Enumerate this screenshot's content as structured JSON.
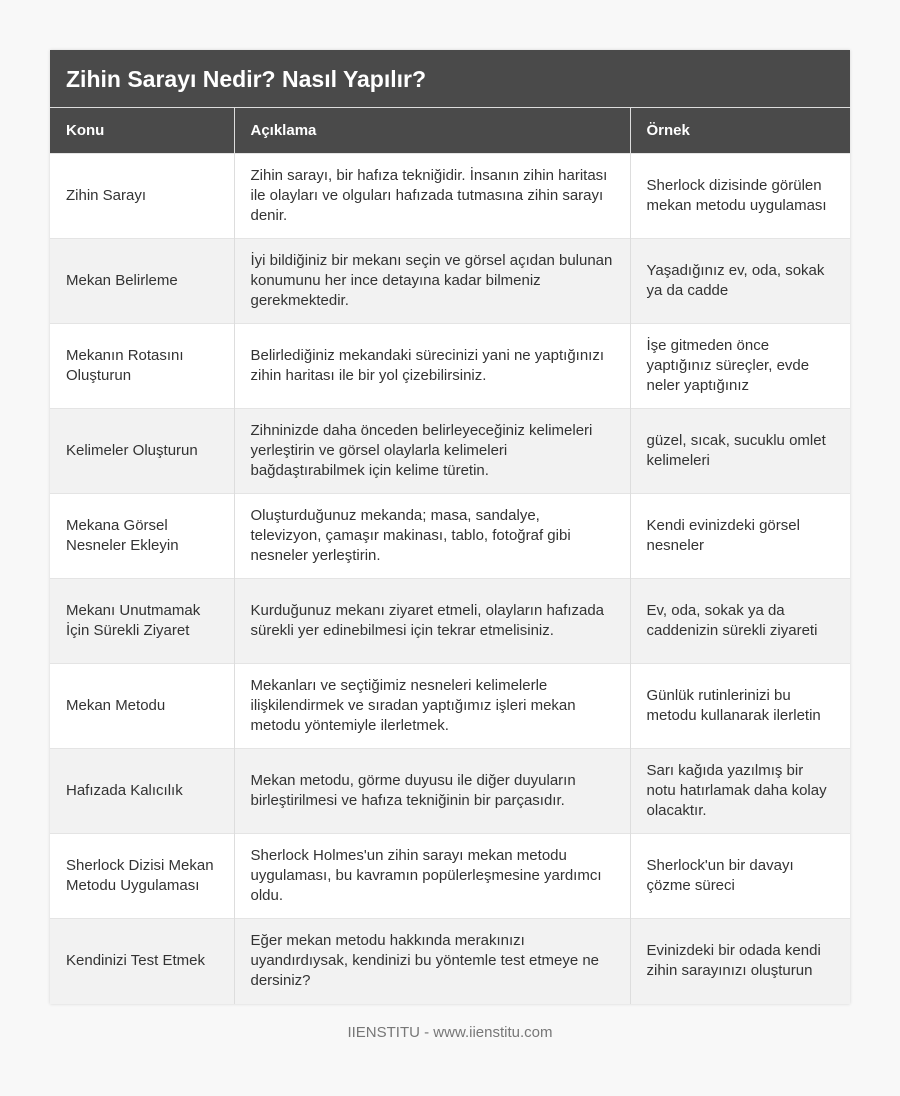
{
  "title": "Zihin Sarayı Nedir? Nasıl Yapılır?",
  "columns": [
    "Konu",
    "Açıklama",
    "Örnek"
  ],
  "rows": [
    [
      "Zihin Sarayı",
      "Zihin sarayı, bir hafıza tekniğidir. İnsanın zihin haritası ile olayları ve olguları hafızada tutmasına zihin sarayı denir.",
      "Sherlock dizisinde görülen mekan metodu uygulaması"
    ],
    [
      "Mekan Belirleme",
      "İyi bildiğiniz bir mekanı seçin ve görsel açıdan bulunan konumunu her ince detayına kadar bilmeniz gerekmektedir.",
      "Yaşadığınız ev, oda, sokak ya da cadde"
    ],
    [
      "Mekanın Rotasını Oluşturun",
      "Belirlediğiniz mekandaki sürecinizi yani ne yaptığınızı zihin haritası ile bir yol çizebilirsiniz.",
      "İşe gitmeden önce yaptığınız süreçler, evde neler yaptığınız"
    ],
    [
      "Kelimeler Oluşturun",
      "Zihninizde daha önceden belirleyeceğiniz kelimeleri yerleştirin ve görsel olaylarla kelimeleri bağdaştırabilmek için kelime türetin.",
      "güzel, sıcak, sucuklu omlet kelimeleri"
    ],
    [
      "Mekana Görsel Nesneler Ekleyin",
      "Oluşturduğunuz mekanda; masa, sandalye, televizyon, çamaşır makinası, tablo, fotoğraf gibi nesneler yerleştirin.",
      "Kendi evinizdeki görsel nesneler"
    ],
    [
      "Mekanı Unutmamak İçin Sürekli Ziyaret",
      "Kurduğunuz mekanı ziyaret etmeli, olayların hafızada sürekli yer edinebilmesi için tekrar etmelisiniz.",
      "Ev, oda, sokak ya da caddenizin sürekli ziyareti"
    ],
    [
      "Mekan Metodu",
      "Mekanları ve seçtiğimiz nesneleri kelimelerle ilişkilendirmek ve sıradan yaptığımız işleri mekan metodu yöntemiyle ilerletmek.",
      "Günlük rutinlerinizi bu metodu kullanarak ilerletin"
    ],
    [
      "Hafızada Kalıcılık",
      "Mekan metodu, görme duyusu ile diğer duyuların birleştirilmesi ve hafıza tekniğinin bir parçasıdır.",
      "Sarı kağıda yazılmış bir notu hatırlamak daha kolay olacaktır."
    ],
    [
      "Sherlock Dizisi Mekan Metodu Uygulaması",
      "Sherlock Holmes'un zihin sarayı mekan metodu uygulaması, bu kavramın popülerleşmesine yardımcı oldu.",
      "Sherlock'un bir davayı çözme süreci"
    ],
    [
      "Kendinizi Test Etmek",
      "Eğer mekan metodu hakkında merakınızı uyandırdıysak, kendinizi bu yöntemle test etmeye ne dersiniz?",
      "Evinizdeki bir odada kendi zihin sarayınızı oluşturun"
    ]
  ],
  "footer": "IIENSTITU - www.iienstitu.com"
}
